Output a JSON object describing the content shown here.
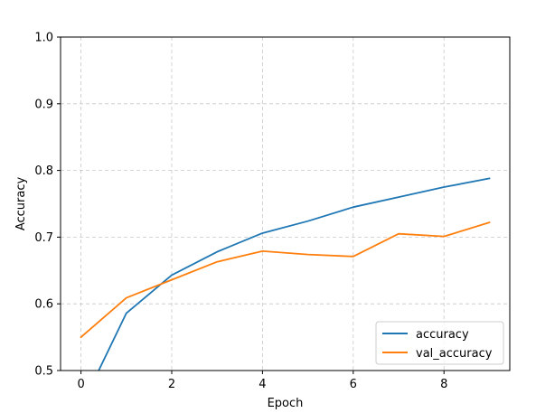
{
  "chart_data": {
    "type": "line",
    "xlabel": "Epoch",
    "ylabel": "Accuracy",
    "xlim": [
      -0.45,
      9.45
    ],
    "ylim": [
      0.5,
      1.0
    ],
    "xticks": [
      0,
      2,
      4,
      6,
      8
    ],
    "yticks": [
      0.5,
      0.6,
      0.7,
      0.8,
      0.9,
      1.0
    ],
    "xtick_labels": [
      "0",
      "2",
      "4",
      "6",
      "8"
    ],
    "ytick_labels": [
      "0.5",
      "0.6",
      "0.7",
      "0.8",
      "0.9",
      "1.0"
    ],
    "grid": true,
    "legend_position": "lower-right",
    "x": [
      0,
      1,
      2,
      3,
      4,
      5,
      6,
      7,
      8,
      9
    ],
    "series": [
      {
        "name": "accuracy",
        "color": "#1f77b4",
        "values": [
          0.445,
          0.586,
          0.643,
          0.678,
          0.706,
          0.724,
          0.745,
          0.76,
          0.775,
          0.788
        ]
      },
      {
        "name": "val_accuracy",
        "color": "#ff7f0e",
        "values": [
          0.55,
          0.609,
          0.636,
          0.663,
          0.679,
          0.674,
          0.671,
          0.705,
          0.701,
          0.722
        ]
      }
    ]
  }
}
